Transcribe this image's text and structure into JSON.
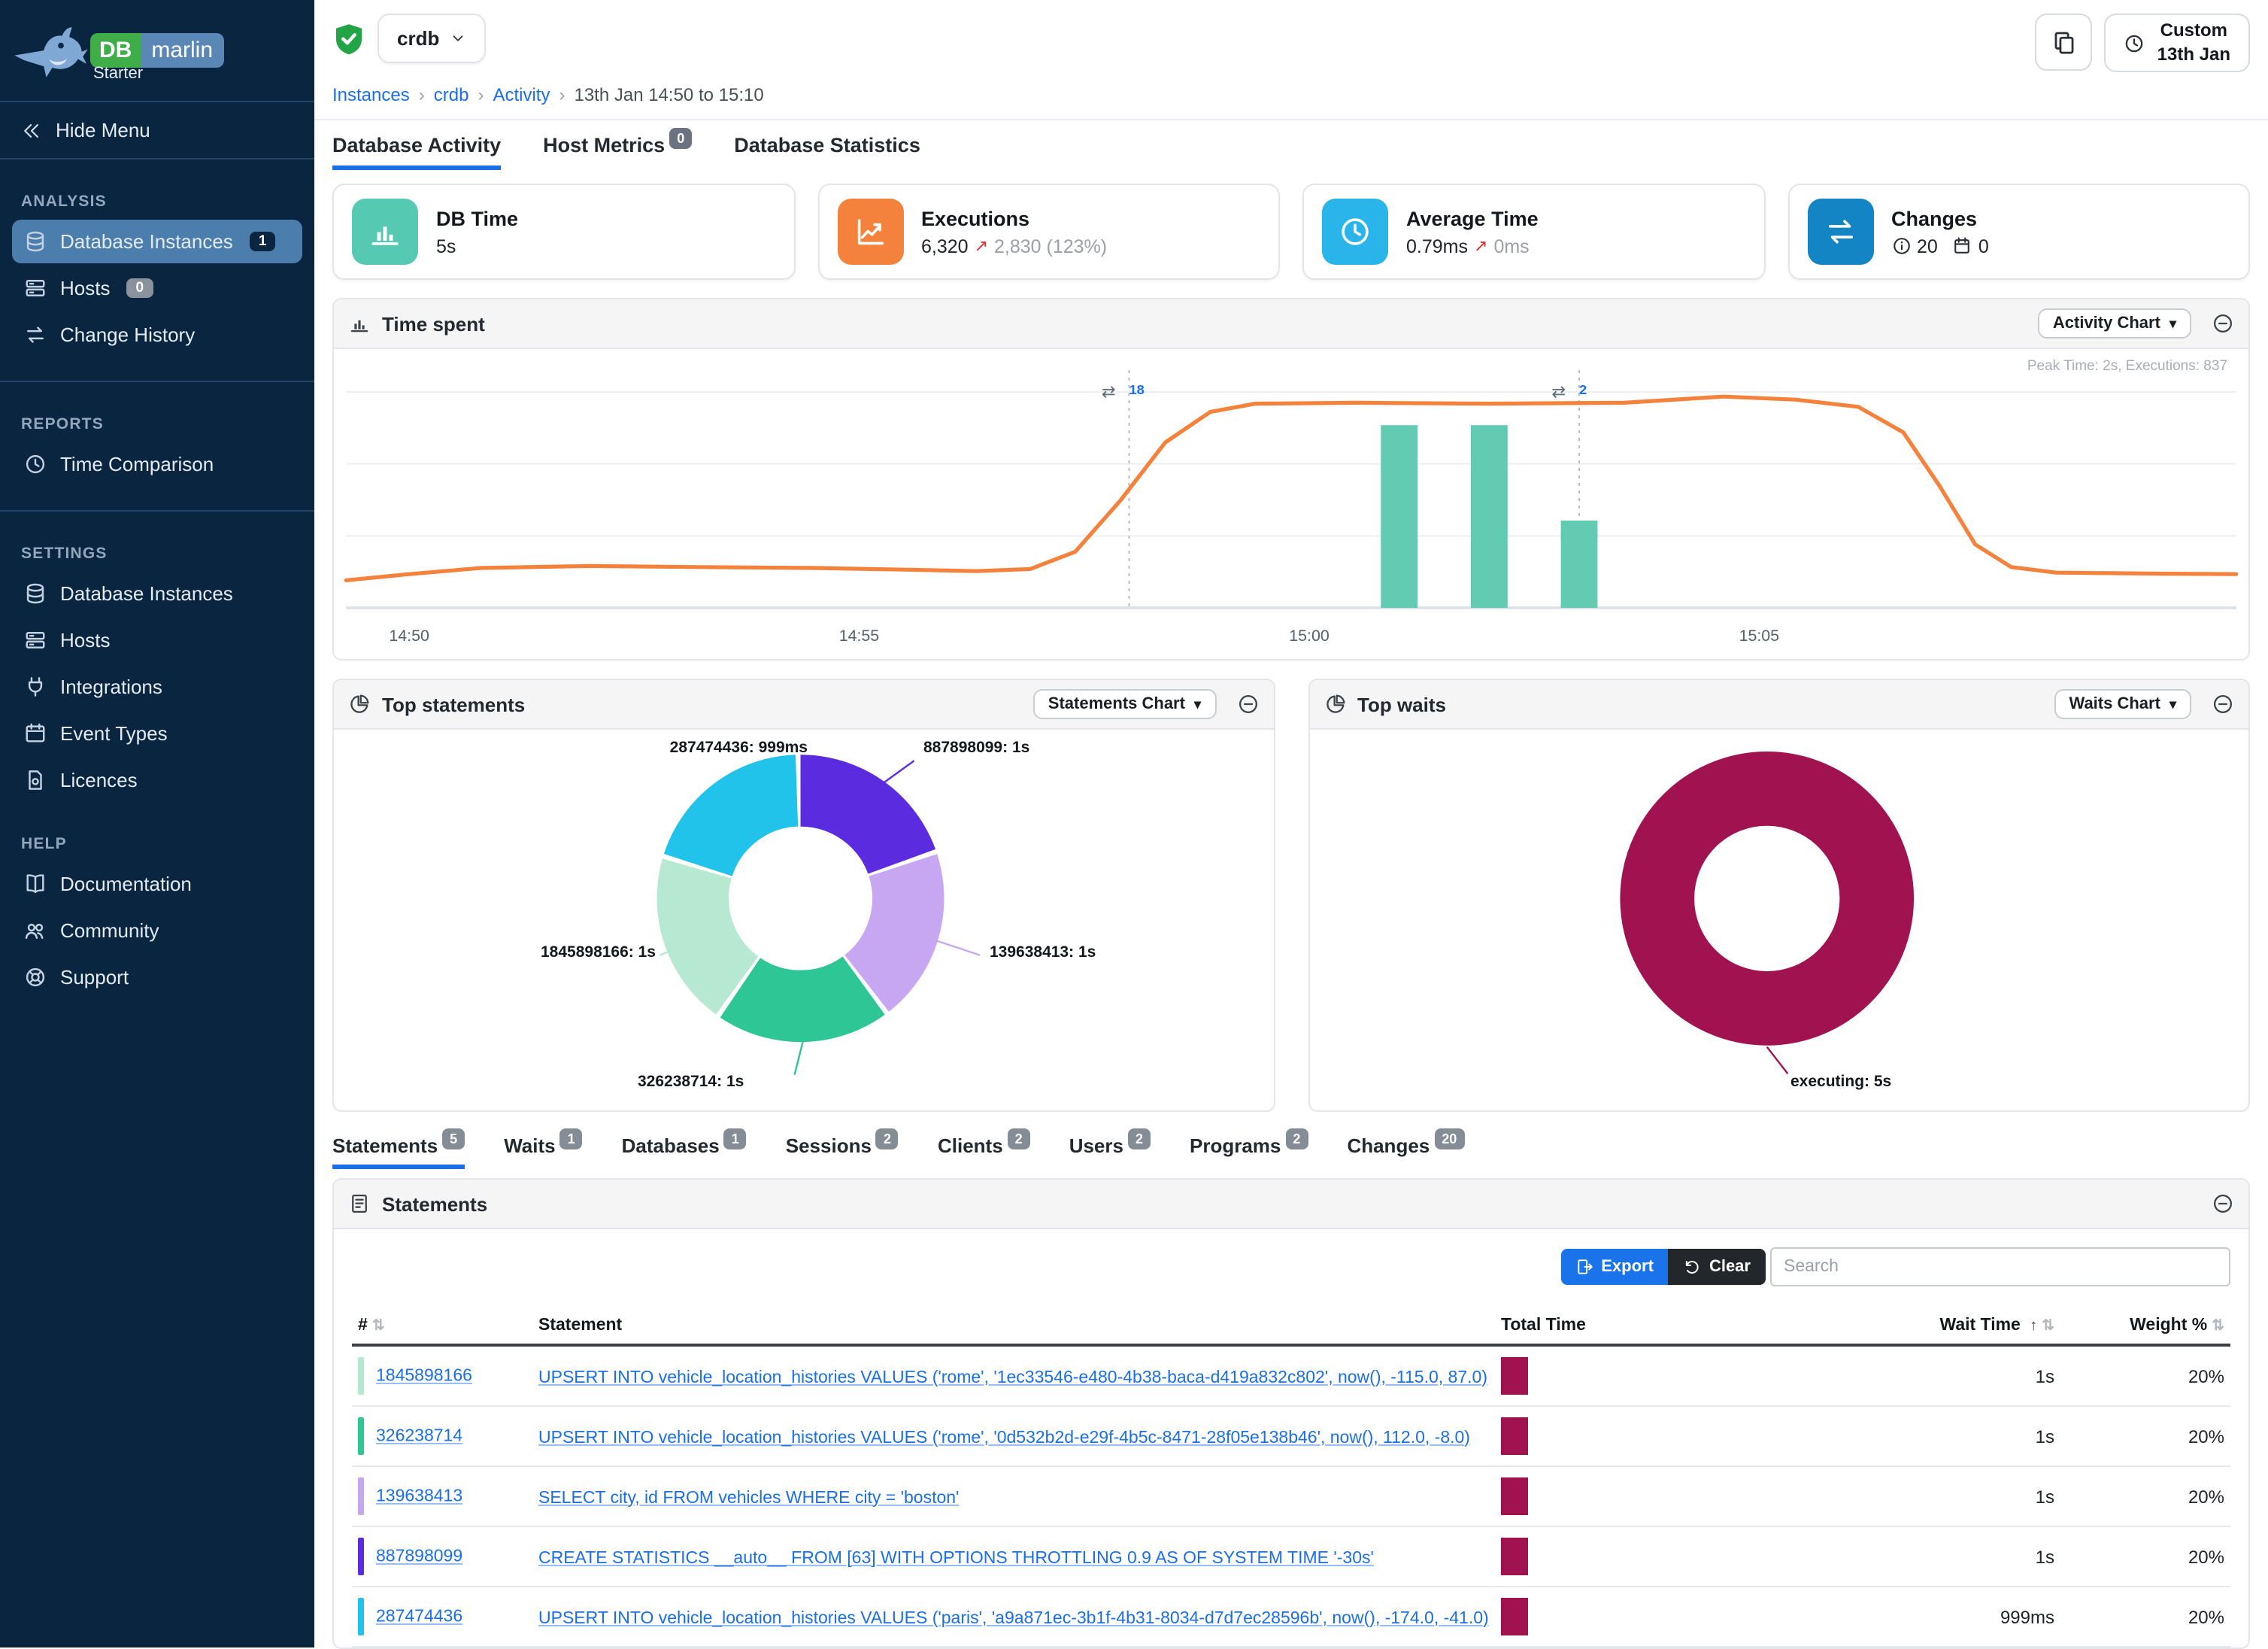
{
  "brand": {
    "db": "DB",
    "marlin": "marlin",
    "edition": "Starter"
  },
  "sidebar": {
    "hide_menu": "Hide Menu",
    "sections": [
      {
        "label": "ANALYSIS",
        "items": [
          {
            "label": "Database Instances",
            "icon": "database-icon",
            "badge": "1",
            "badge_style": "navy",
            "active": true
          },
          {
            "label": "Hosts",
            "icon": "server-icon",
            "badge": "0",
            "badge_style": "grey"
          },
          {
            "label": "Change History",
            "icon": "change-history-icon"
          }
        ]
      },
      {
        "label": "REPORTS",
        "items": [
          {
            "label": "Time Comparison",
            "icon": "time-comparison-icon"
          }
        ]
      },
      {
        "label": "SETTINGS",
        "items": [
          {
            "label": "Database Instances",
            "icon": "database-icon"
          },
          {
            "label": "Hosts",
            "icon": "server-icon"
          },
          {
            "label": "Integrations",
            "icon": "plug-icon"
          },
          {
            "label": "Event Types",
            "icon": "event-types-icon"
          },
          {
            "label": "Licences",
            "icon": "licence-icon"
          }
        ]
      },
      {
        "label": "HELP",
        "items": [
          {
            "label": "Documentation",
            "icon": "book-icon"
          },
          {
            "label": "Community",
            "icon": "people-icon"
          },
          {
            "label": "Support",
            "icon": "support-icon"
          }
        ]
      }
    ]
  },
  "header": {
    "instance": "crdb",
    "breadcrumb": [
      "Instances",
      "crdb",
      "Activity",
      "13th Jan 14:50 to 15:10"
    ],
    "time_button": {
      "line1": "Custom",
      "line2": "13th Jan"
    }
  },
  "tabs": [
    {
      "label": "Database Activity",
      "active": true
    },
    {
      "label": "Host Metrics",
      "badge": "0"
    },
    {
      "label": "Database Statistics"
    }
  ],
  "cards": [
    {
      "title": "DB Time",
      "value": "5s",
      "icon": "bar-chart-icon",
      "color": "#55c9b1"
    },
    {
      "title": "Executions",
      "value": "6,320",
      "delta": "2,830 (123%)",
      "icon": "line-chart-icon",
      "color": "#f5823c"
    },
    {
      "title": "Average Time",
      "value": "0.79ms",
      "delta": "0ms",
      "icon": "clock-icon",
      "color": "#29b5ea"
    },
    {
      "title": "Changes",
      "info_count": "20",
      "event_count": "0",
      "icon": "changes-icon",
      "color": "#1385c4"
    }
  ],
  "time_spent_panel": {
    "title": "Time spent",
    "chart_button": "Activity Chart",
    "note": "Peak Time: 2s, Executions: 837"
  },
  "statements_donut_panel": {
    "title": "Top statements",
    "chart_button": "Statements Chart"
  },
  "waits_donut_panel": {
    "title": "Top waits",
    "chart_button": "Waits Chart"
  },
  "chart_data": [
    {
      "type": "line",
      "title": "Time spent",
      "x_unit": "minutes after 14:50",
      "x_ticks": [
        {
          "t": 0,
          "label": "14:50"
        },
        {
          "t": 5,
          "label": "14:55"
        },
        {
          "t": 10,
          "label": "15:00"
        },
        {
          "t": 15,
          "label": "15:05"
        }
      ],
      "xlim": [
        -0.7,
        20.3
      ],
      "ylim": [
        0,
        2.3
      ],
      "note": "Peak Time: 2s, Executions: 837",
      "series": [
        {
          "name": "DB Time (s)",
          "type": "line",
          "color": "#f5823c",
          "points": [
            [
              -0.7,
              0.27
            ],
            [
              0,
              0.33
            ],
            [
              0.8,
              0.39
            ],
            [
              2,
              0.41
            ],
            [
              3.2,
              0.4
            ],
            [
              4.5,
              0.39
            ],
            [
              5.5,
              0.375
            ],
            [
              6.3,
              0.36
            ],
            [
              6.9,
              0.38
            ],
            [
              7.4,
              0.55
            ],
            [
              7.9,
              1.05
            ],
            [
              8.4,
              1.62
            ],
            [
              8.9,
              1.92
            ],
            [
              9.4,
              2.0
            ],
            [
              10.5,
              2.01
            ],
            [
              12,
              2.0
            ],
            [
              13.5,
              2.01
            ],
            [
              14.6,
              2.07
            ],
            [
              15.4,
              2.04
            ],
            [
              16.1,
              1.97
            ],
            [
              16.6,
              1.72
            ],
            [
              17.0,
              1.2
            ],
            [
              17.4,
              0.62
            ],
            [
              17.8,
              0.4
            ],
            [
              18.3,
              0.345
            ],
            [
              19.5,
              0.335
            ],
            [
              20.3,
              0.33
            ]
          ]
        },
        {
          "name": "Executions",
          "type": "bar",
          "color": "#63cbb2",
          "max": 837,
          "points": [
            [
              11,
              837
            ],
            [
              12,
              837
            ],
            [
              13,
              400
            ]
          ]
        }
      ],
      "annotations": [
        {
          "t": 8,
          "label": "18"
        },
        {
          "t": 13,
          "label": "2"
        }
      ]
    },
    {
      "type": "pie",
      "title": "Top statements",
      "slices": [
        {
          "label": "887898099: 1s",
          "value": 1.0,
          "color": "#5b2be0"
        },
        {
          "label": "139638413: 1s",
          "value": 1.0,
          "color": "#c7a7f2"
        },
        {
          "label": "326238714: 1s",
          "value": 1.0,
          "color": "#2ec695"
        },
        {
          "label": "1845898166: 1s",
          "value": 1.0,
          "color": "#b7e8d2"
        },
        {
          "label": "287474436: 999ms",
          "value": 0.999,
          "color": "#22c3ea"
        }
      ]
    },
    {
      "type": "pie",
      "title": "Top waits",
      "slices": [
        {
          "label": "executing: 5s",
          "value": 5,
          "color": "#a11350"
        }
      ]
    }
  ],
  "detail_tabs": [
    {
      "label": "Statements",
      "badge": "5",
      "active": true
    },
    {
      "label": "Waits",
      "badge": "1"
    },
    {
      "label": "Databases",
      "badge": "1"
    },
    {
      "label": "Sessions",
      "badge": "2"
    },
    {
      "label": "Clients",
      "badge": "2"
    },
    {
      "label": "Users",
      "badge": "2"
    },
    {
      "label": "Programs",
      "badge": "2"
    },
    {
      "label": "Changes",
      "badge": "20"
    }
  ],
  "statements_panel": {
    "title": "Statements",
    "export_label": "Export",
    "clear_label": "Clear",
    "search_placeholder": "Search",
    "columns": [
      "#",
      "Statement",
      "Total Time",
      "Wait Time",
      "Weight %"
    ],
    "total_time_bar_color": "#a11350",
    "rows": [
      {
        "id": "1845898166",
        "chip_color": "#b7e8d2",
        "statement": "UPSERT INTO vehicle_location_histories VALUES ('rome', '1ec33546-e480-4b38-baca-d419a832c802', now(), -115.0, 87.0)",
        "wait_time": "1s",
        "weight": "20%"
      },
      {
        "id": "326238714",
        "chip_color": "#2ec695",
        "statement": "UPSERT INTO vehicle_location_histories VALUES ('rome', '0d532b2d-e29f-4b5c-8471-28f05e138b46', now(), 112.0, -8.0)",
        "wait_time": "1s",
        "weight": "20%"
      },
      {
        "id": "139638413",
        "chip_color": "#c7a7f2",
        "statement": "SELECT city, id FROM vehicles WHERE city = 'boston'",
        "wait_time": "1s",
        "weight": "20%"
      },
      {
        "id": "887898099",
        "chip_color": "#5b2be0",
        "statement": "CREATE STATISTICS __auto__ FROM [63] WITH OPTIONS THROTTLING 0.9 AS OF SYSTEM TIME '-30s'",
        "wait_time": "1s",
        "weight": "20%"
      },
      {
        "id": "287474436",
        "chip_color": "#22c3ea",
        "statement": "UPSERT INTO vehicle_location_histories VALUES ('paris', 'a9a871ec-3b1f-4b31-8034-d7d7ec28596b', now(), -174.0, -41.0)",
        "wait_time": "999ms",
        "weight": "20%"
      }
    ]
  }
}
